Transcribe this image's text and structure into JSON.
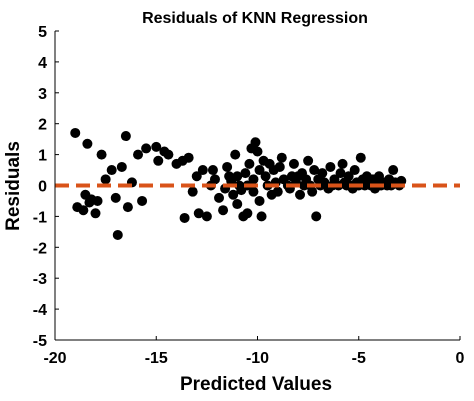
{
  "chart_data": {
    "type": "scatter",
    "title": "Residuals of KNN Regression",
    "xlabel": "Predicted Values",
    "ylabel": "Residuals",
    "xlim": [
      -20,
      0
    ],
    "ylim": [
      -5,
      5
    ],
    "xticks": [
      -20,
      -15,
      -10,
      -5,
      0
    ],
    "yticks": [
      -5,
      -4,
      -3,
      -2,
      -1,
      0,
      1,
      2,
      3,
      4,
      5
    ],
    "xtick_labels": [
      "-20",
      "-15",
      "-10",
      "-5",
      "0"
    ],
    "ytick_labels": [
      "-5",
      "-4",
      "-3",
      "-2",
      "-1",
      "0",
      "1",
      "2",
      "3",
      "4",
      "5"
    ],
    "grid": false,
    "reference_line": {
      "y": 0,
      "style": "dashed"
    },
    "colors": {
      "points": "#000000",
      "reference_line": "#D95319",
      "axes": "#000000"
    },
    "series": [
      {
        "points": [
          [
            -19.0,
            1.7
          ],
          [
            -18.9,
            -0.7
          ],
          [
            -18.6,
            -0.8
          ],
          [
            -18.5,
            -0.3
          ],
          [
            -18.4,
            1.35
          ],
          [
            -18.3,
            -0.55
          ],
          [
            -18.2,
            -0.45
          ],
          [
            -18.0,
            -0.9
          ],
          [
            -17.9,
            -0.5
          ],
          [
            -17.7,
            1.0
          ],
          [
            -17.5,
            0.2
          ],
          [
            -17.2,
            0.5
          ],
          [
            -17.0,
            -0.4
          ],
          [
            -16.9,
            -1.6
          ],
          [
            -16.7,
            0.6
          ],
          [
            -16.5,
            1.6
          ],
          [
            -16.4,
            -0.7
          ],
          [
            -16.2,
            0.1
          ],
          [
            -15.9,
            1.0
          ],
          [
            -15.7,
            -0.5
          ],
          [
            -15.5,
            1.2
          ],
          [
            -15.0,
            1.25
          ],
          [
            -14.9,
            0.8
          ],
          [
            -14.6,
            1.1
          ],
          [
            -14.4,
            1.0
          ],
          [
            -14.0,
            0.7
          ],
          [
            -13.7,
            0.8
          ],
          [
            -13.6,
            -1.05
          ],
          [
            -13.4,
            0.9
          ],
          [
            -13.2,
            -0.2
          ],
          [
            -13.0,
            0.3
          ],
          [
            -12.9,
            -0.9
          ],
          [
            -12.7,
            0.5
          ],
          [
            -12.5,
            -1.0
          ],
          [
            -12.3,
            0.0
          ],
          [
            -12.2,
            0.5
          ],
          [
            -12.1,
            0.2
          ],
          [
            -11.9,
            -0.4
          ],
          [
            -11.7,
            -0.8
          ],
          [
            -11.6,
            -0.1
          ],
          [
            -11.5,
            0.6
          ],
          [
            -11.4,
            0.3
          ],
          [
            -11.3,
            0.15
          ],
          [
            -11.2,
            -0.3
          ],
          [
            -11.1,
            1.0
          ],
          [
            -11.0,
            -0.6
          ],
          [
            -11.0,
            0.3
          ],
          [
            -10.9,
            0.0
          ],
          [
            -10.8,
            -0.15
          ],
          [
            -10.7,
            -1.0
          ],
          [
            -10.6,
            0.4
          ],
          [
            -10.5,
            0.0
          ],
          [
            -10.5,
            -0.9
          ],
          [
            -10.4,
            0.7
          ],
          [
            -10.3,
            1.2
          ],
          [
            -10.2,
            0.2
          ],
          [
            -10.2,
            -0.2
          ],
          [
            -10.1,
            1.4
          ],
          [
            -10.0,
            1.1
          ],
          [
            -9.9,
            0.5
          ],
          [
            -9.9,
            -0.5
          ],
          [
            -9.8,
            -1.0
          ],
          [
            -9.7,
            0.8
          ],
          [
            -9.6,
            0.3
          ],
          [
            -9.5,
            0.0
          ],
          [
            -9.4,
            0.7
          ],
          [
            -9.3,
            -0.3
          ],
          [
            -9.2,
            0.5
          ],
          [
            -9.1,
            0.1
          ],
          [
            -9.0,
            -0.2
          ],
          [
            -8.9,
            0.6
          ],
          [
            -8.8,
            0.9
          ],
          [
            -8.7,
            0.2
          ],
          [
            -8.5,
            0.0
          ],
          [
            -8.4,
            -0.1
          ],
          [
            -8.3,
            0.3
          ],
          [
            -8.2,
            0.7
          ],
          [
            -8.1,
            0.1
          ],
          [
            -8.0,
            0.3
          ],
          [
            -7.9,
            -0.3
          ],
          [
            -7.8,
            0.4
          ],
          [
            -7.7,
            0.0
          ],
          [
            -7.6,
            0.2
          ],
          [
            -7.5,
            0.8
          ],
          [
            -7.4,
            0.0
          ],
          [
            -7.3,
            -0.2
          ],
          [
            -7.2,
            0.5
          ],
          [
            -7.1,
            -1.0
          ],
          [
            -7.0,
            0.2
          ],
          [
            -6.9,
            0.0
          ],
          [
            -6.8,
            0.4
          ],
          [
            -6.7,
            0.1
          ],
          [
            -6.5,
            -0.1
          ],
          [
            -6.4,
            0.6
          ],
          [
            -6.3,
            0.0
          ],
          [
            -6.2,
            0.2
          ],
          [
            -6.0,
            0.0
          ],
          [
            -5.9,
            0.4
          ],
          [
            -5.8,
            0.7
          ],
          [
            -5.7,
            0.1
          ],
          [
            -5.6,
            0.0
          ],
          [
            -5.5,
            0.3
          ],
          [
            -5.4,
            0.0
          ],
          [
            -5.3,
            -0.1
          ],
          [
            -5.2,
            0.5
          ],
          [
            -5.1,
            0.1
          ],
          [
            -5.0,
            0.0
          ],
          [
            -4.9,
            0.9
          ],
          [
            -4.8,
            0.2
          ],
          [
            -4.7,
            0.0
          ],
          [
            -4.6,
            0.3
          ],
          [
            -4.5,
            0.1
          ],
          [
            -4.4,
            0.0
          ],
          [
            -4.3,
            0.2
          ],
          [
            -4.2,
            -0.1
          ],
          [
            -4.1,
            0.0
          ],
          [
            -4.0,
            0.3
          ],
          [
            -3.9,
            0.0
          ],
          [
            -3.8,
            0.1
          ],
          [
            -3.6,
            0.0
          ],
          [
            -3.5,
            0.2
          ],
          [
            -3.4,
            0.0
          ],
          [
            -3.3,
            0.5
          ],
          [
            -3.2,
            0.1
          ],
          [
            -3.0,
            0.0
          ],
          [
            -2.9,
            0.15
          ]
        ]
      }
    ]
  }
}
